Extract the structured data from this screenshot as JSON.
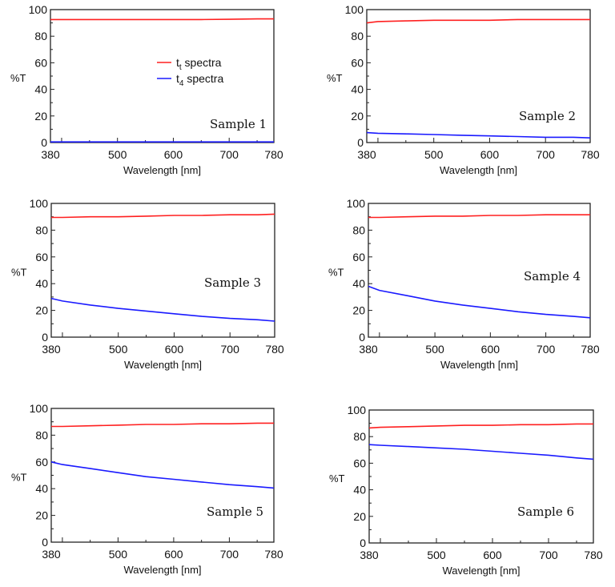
{
  "chart_data": {
    "legend": {
      "placement": "center-right of first panel",
      "entries": [
        {
          "base": "t",
          "sub": "t",
          "suffix": " spectra",
          "color": "#ff2020"
        },
        {
          "base": "t",
          "sub": "4",
          "suffix": " spectra",
          "color": "#1a1aff"
        }
      ]
    },
    "panels": [
      {
        "type": "line",
        "label": "Sample 1",
        "xlabel": "Wavelength [nm]",
        "ylabel": "%T",
        "xlim": [
          380,
          780
        ],
        "ylim": [
          0,
          100
        ],
        "xticks": [
          380,
          500,
          600,
          700,
          780
        ],
        "yticks": [
          0,
          20,
          40,
          60,
          80,
          100
        ],
        "x": [
          380,
          400,
          450,
          500,
          550,
          600,
          650,
          700,
          750,
          780
        ],
        "series": [
          {
            "name": "t_t spectra",
            "color": "#ff2020",
            "values": [
              92.5,
              92.5,
              92.5,
              92.5,
              92.5,
              92.5,
              92.5,
              92.7,
              93,
              93
            ]
          },
          {
            "name": "t_4 spectra",
            "color": "#1a1aff",
            "values": [
              0.5,
              0.5,
              0.5,
              0.5,
              0.5,
              0.5,
              0.5,
              0.5,
              0.5,
              0.5
            ]
          }
        ]
      },
      {
        "type": "line",
        "label": "Sample 2",
        "xlabel": "Wavelength [nm]",
        "ylabel": "%T",
        "xlim": [
          380,
          780
        ],
        "ylim": [
          0,
          100
        ],
        "xticks": [
          380,
          500,
          600,
          700,
          780
        ],
        "yticks": [
          0,
          20,
          40,
          60,
          80,
          100
        ],
        "x": [
          380,
          400,
          450,
          500,
          550,
          600,
          650,
          700,
          750,
          780
        ],
        "series": [
          {
            "name": "t_t spectra",
            "color": "#ff2020",
            "values": [
              90,
              91,
              91.5,
              92,
              92,
              92,
              92.5,
              92.5,
              92.5,
              92.5
            ]
          },
          {
            "name": "t_4 spectra",
            "color": "#1a1aff",
            "values": [
              7.5,
              7,
              6.5,
              6,
              5.5,
              5,
              4.5,
              4,
              4,
              3.5
            ]
          }
        ]
      },
      {
        "type": "line",
        "label": "Sample 3",
        "xlabel": "Wavelength [nm]",
        "ylabel": "%T",
        "xlim": [
          380,
          780
        ],
        "ylim": [
          0,
          100
        ],
        "xticks": [
          380,
          500,
          600,
          700,
          780
        ],
        "yticks": [
          0,
          20,
          40,
          60,
          80,
          100
        ],
        "x": [
          380,
          400,
          450,
          500,
          550,
          600,
          650,
          700,
          750,
          780
        ],
        "series": [
          {
            "name": "t_t spectra",
            "color": "#ff2020",
            "values": [
              89.5,
              89.5,
              90,
              90,
              90.5,
              91,
              91,
              91.5,
              91.5,
              92
            ]
          },
          {
            "name": "t_4 spectra",
            "color": "#1a1aff",
            "values": [
              29,
              27,
              24,
              21.5,
              19.5,
              17.5,
              15.5,
              14,
              13,
              12
            ]
          }
        ]
      },
      {
        "type": "line",
        "label": "Sample 4",
        "xlabel": "Wavelength [nm]",
        "ylabel": "%T",
        "xlim": [
          380,
          780
        ],
        "ylim": [
          0,
          100
        ],
        "xticks": [
          380,
          500,
          600,
          700,
          780
        ],
        "yticks": [
          0,
          20,
          40,
          60,
          80,
          100
        ],
        "x": [
          380,
          400,
          450,
          500,
          550,
          600,
          650,
          700,
          750,
          780
        ],
        "series": [
          {
            "name": "t_t spectra",
            "color": "#ff2020",
            "values": [
              89.5,
              89.5,
              90,
              90.5,
              90.5,
              91,
              91,
              91.5,
              91.5,
              91.5
            ]
          },
          {
            "name": "t_4 spectra",
            "color": "#1a1aff",
            "values": [
              38,
              35,
              31,
              27,
              24,
              21.5,
              19,
              17,
              15.5,
              14.5
            ]
          }
        ]
      },
      {
        "type": "line",
        "label": "Sample 5",
        "xlabel": "Wavelength [nm]",
        "ylabel": "%T",
        "xlim": [
          380,
          780
        ],
        "ylim": [
          0,
          100
        ],
        "xticks": [
          380,
          500,
          600,
          700,
          780
        ],
        "yticks": [
          0,
          20,
          40,
          60,
          80,
          100
        ],
        "x": [
          380,
          400,
          450,
          500,
          550,
          600,
          650,
          700,
          750,
          780
        ],
        "series": [
          {
            "name": "t_t spectra",
            "color": "#ff2020",
            "values": [
              86.5,
              86.5,
              87,
              87.5,
              88,
              88,
              88.5,
              88.5,
              89,
              89
            ]
          },
          {
            "name": "t_4 spectra",
            "color": "#1a1aff",
            "values": [
              60,
              58,
              55,
              52,
              49,
              47,
              45,
              43,
              41.5,
              40.5
            ]
          }
        ]
      },
      {
        "type": "line",
        "label": "Sample 6",
        "xlabel": "Wavelength [nm]",
        "ylabel": "%T",
        "xlim": [
          380,
          780
        ],
        "ylim": [
          0,
          100
        ],
        "xticks": [
          380,
          500,
          600,
          700,
          780
        ],
        "yticks": [
          0,
          20,
          40,
          60,
          80,
          100
        ],
        "x": [
          380,
          400,
          450,
          500,
          550,
          600,
          650,
          700,
          750,
          780
        ],
        "series": [
          {
            "name": "t_t spectra",
            "color": "#ff2020",
            "values": [
              86.5,
              87,
              87.5,
              88,
              88.5,
              88.5,
              89,
              89,
              89.5,
              89.5
            ]
          },
          {
            "name": "t_4 spectra",
            "color": "#1a1aff",
            "values": [
              74,
              73.5,
              72.5,
              71.5,
              70.5,
              69,
              67.5,
              66,
              64,
              63
            ]
          }
        ]
      }
    ]
  }
}
